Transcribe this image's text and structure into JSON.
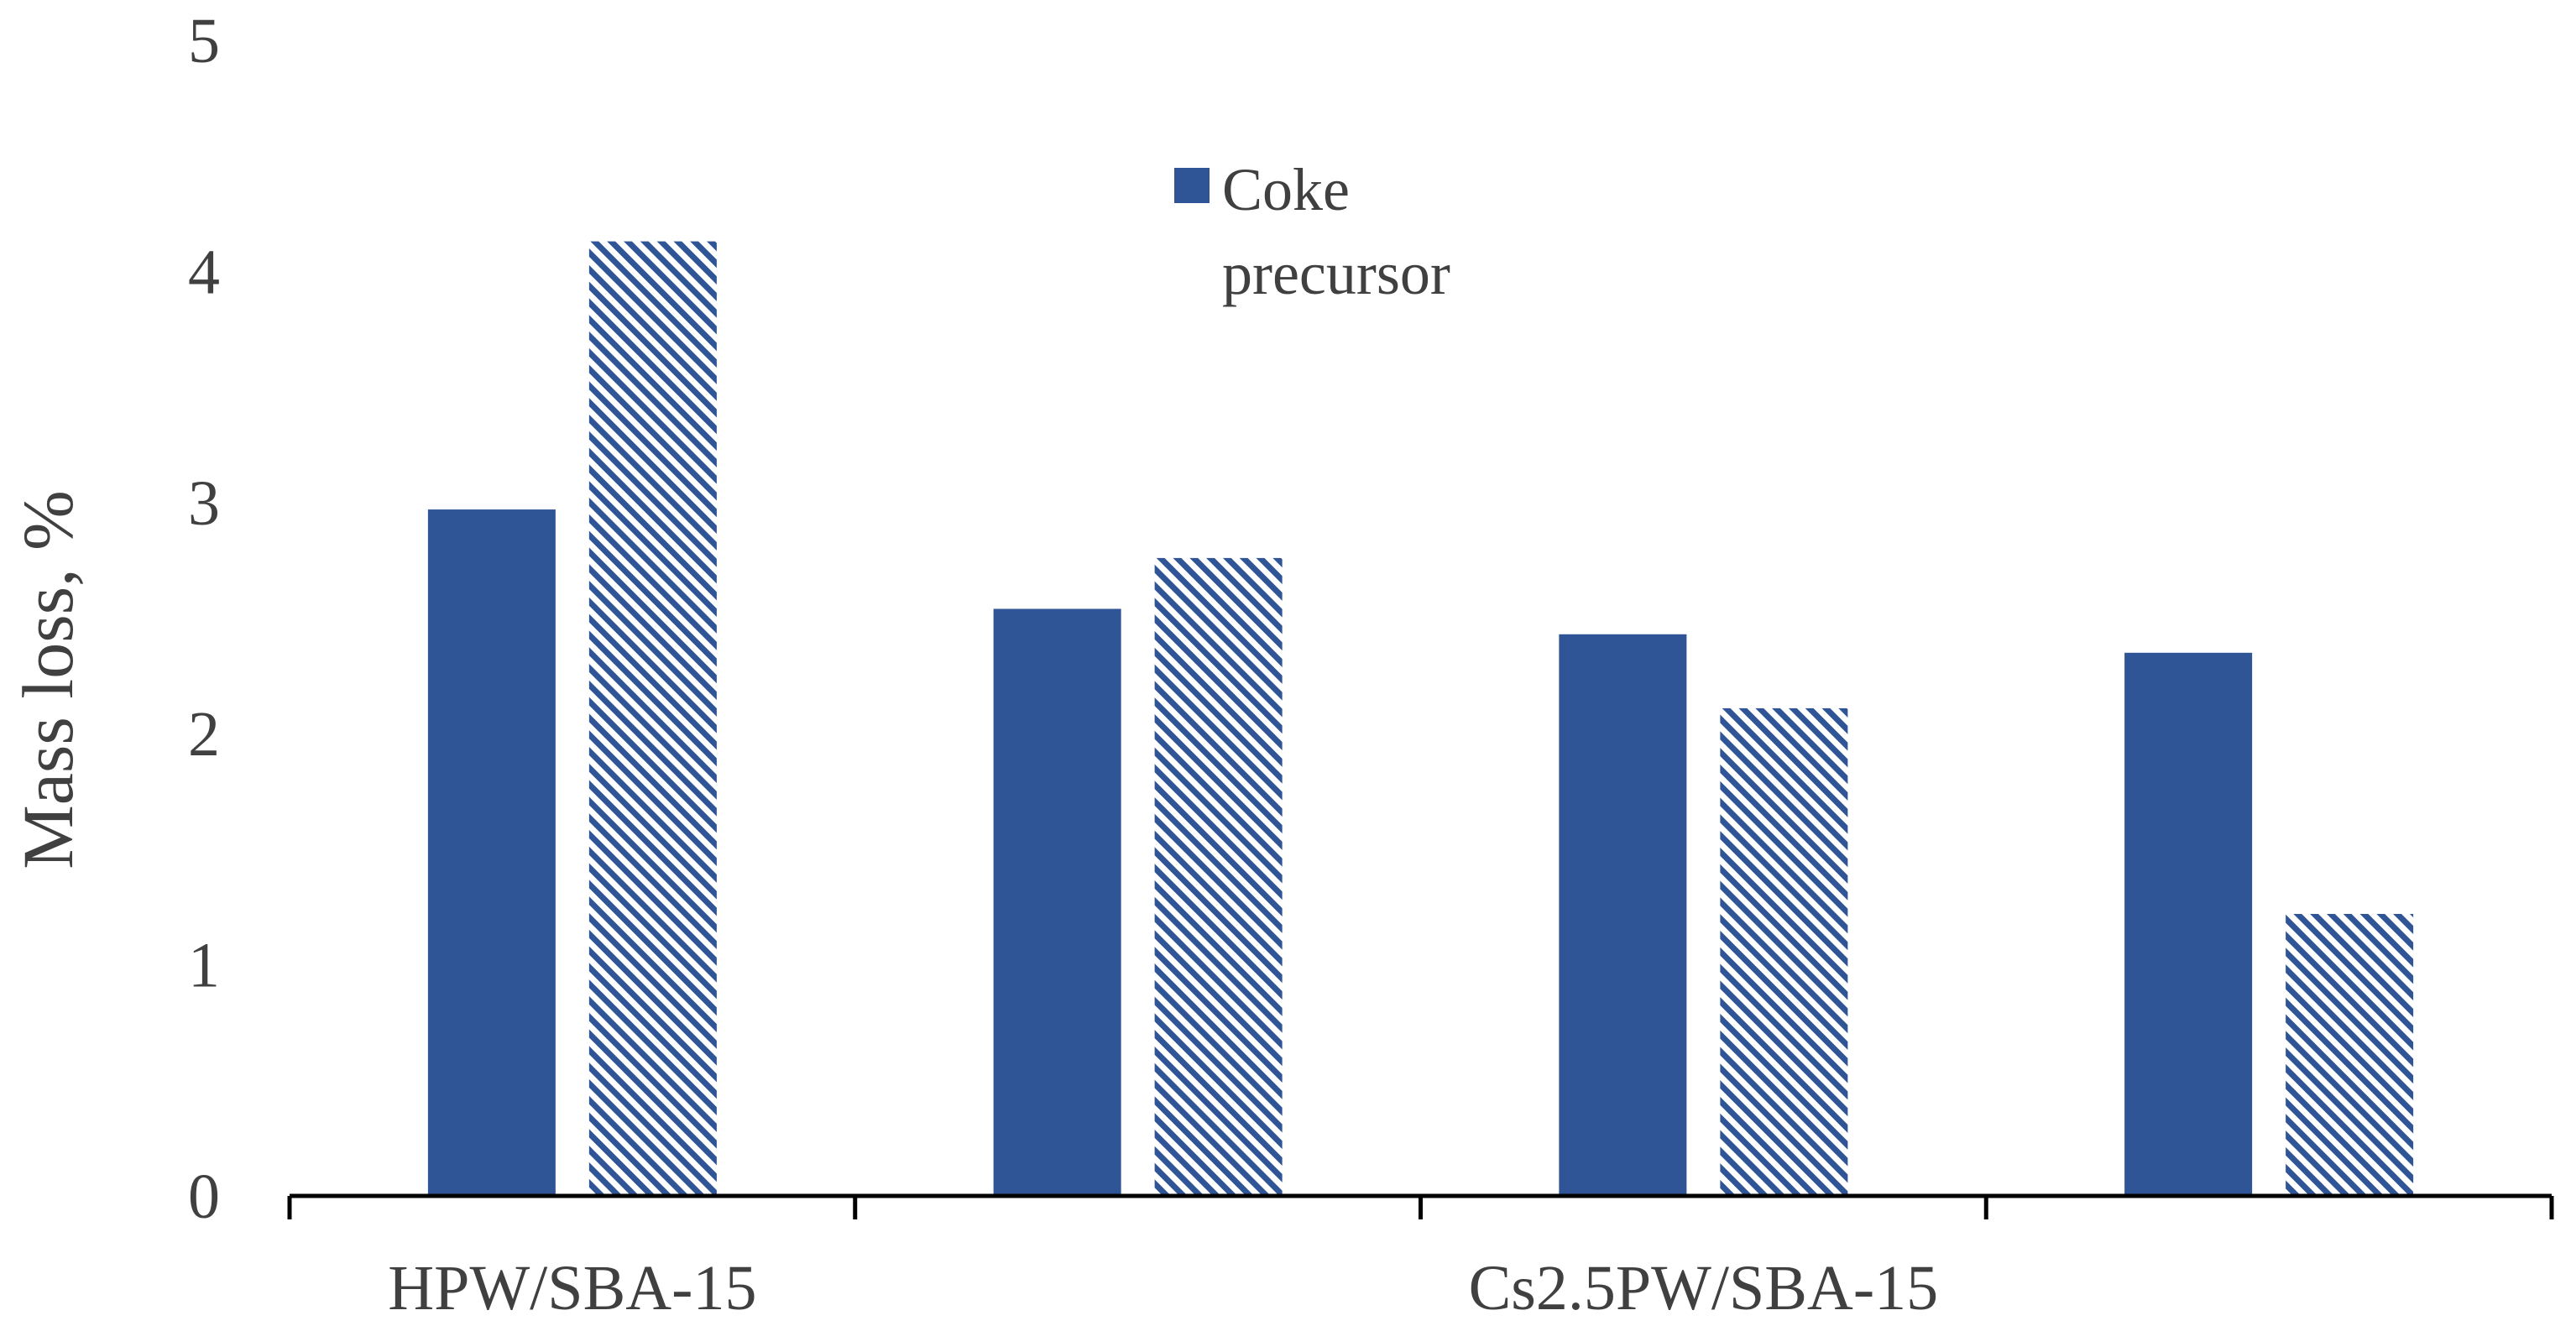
{
  "colors": {
    "series_solid": "#2f5597",
    "series_hatch": "#2f5597",
    "axis": "#000000",
    "text": "#404040"
  },
  "chart_data": {
    "type": "bar",
    "title": "",
    "xlabel": "",
    "ylabel": "Mass loss, %",
    "ylim": [
      0,
      5
    ],
    "yticks": [
      0,
      1,
      2,
      3,
      4,
      5
    ],
    "group_count": 4,
    "category_labels": [
      {
        "label": "HPW/SBA-15",
        "group": 0
      },
      {
        "label": "Cs2.5PW/SBA-15",
        "group": 2
      }
    ],
    "series": [
      {
        "name": "Coke precursor",
        "style": "solid",
        "values": [
          2.97,
          2.54,
          2.43,
          2.35
        ]
      },
      {
        "name": "",
        "style": "hatched",
        "values": [
          4.13,
          2.76,
          2.11,
          1.22
        ]
      }
    ],
    "legend": {
      "placement": "top-center",
      "entries": [
        {
          "line1": "Coke",
          "line2": "precursor"
        }
      ]
    }
  }
}
